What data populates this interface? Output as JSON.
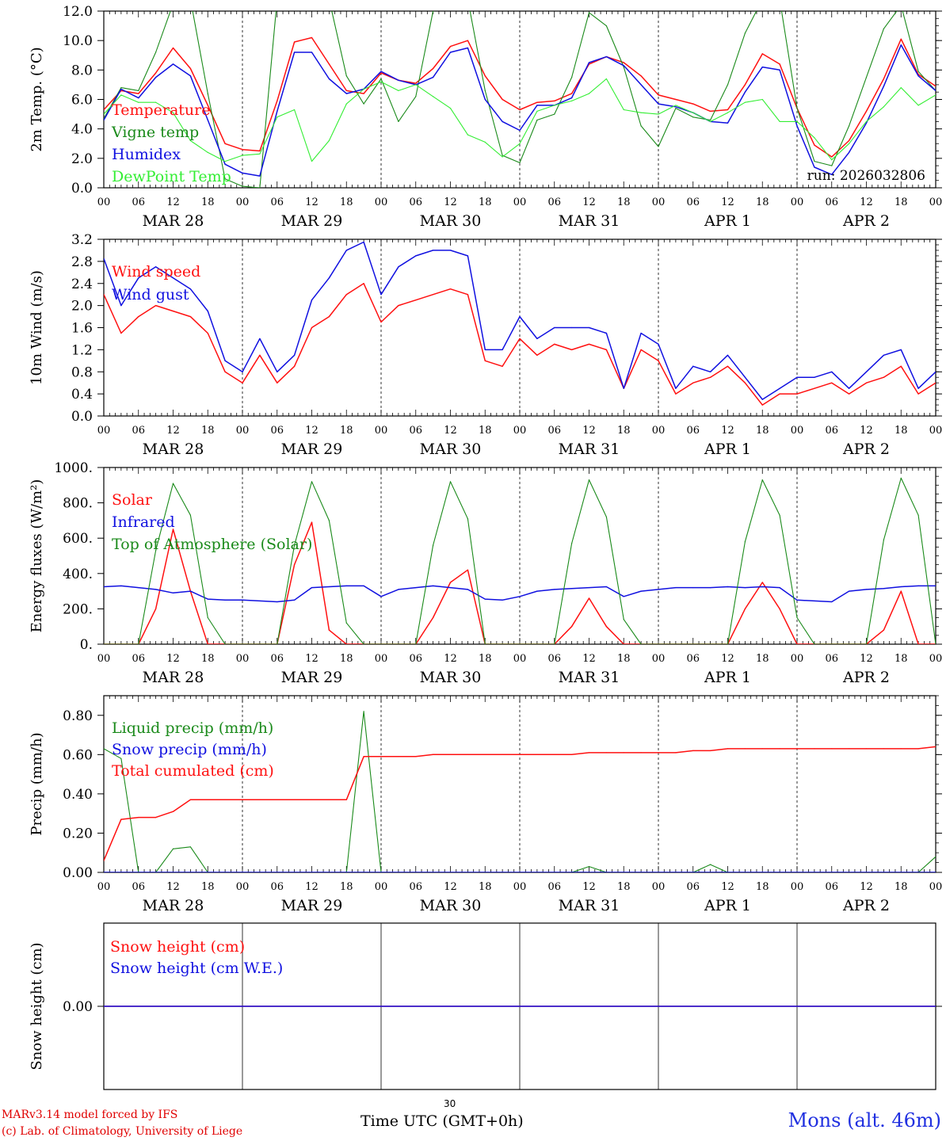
{
  "colors": {
    "red": "#ff1010",
    "darkgreen": "#1a8a1a",
    "blue": "#1010e0",
    "lightgreen": "#33ee33",
    "axis": "#000000"
  },
  "footer": {
    "model_line": "MARv3.14 model forced by IFS",
    "credit_line": "(c) Lab. of Climatology, University of Liege",
    "x_axis_label": "Time UTC (GMT+0h)",
    "page_number": "30",
    "station": "Mons (alt. 46m)"
  },
  "chart_data": [
    {
      "type": "line",
      "id": "temp",
      "ylabel": "2m Temp. (°C)",
      "ylim": [
        0,
        12
      ],
      "yticks": [
        "0.0",
        "2.0",
        "4.0",
        "6.0",
        "8.0",
        "10.0",
        "12.0"
      ],
      "day_labels": [
        "MAR 28",
        "MAR 29",
        "MAR 30",
        "MAR 31",
        "APR  1",
        "APR  2"
      ],
      "hour_labels": [
        "00",
        "06",
        "12",
        "18"
      ],
      "annotation": "run: 2026032806",
      "x_hours": [
        0,
        3,
        6,
        9,
        12,
        15,
        18,
        21,
        24,
        27,
        30,
        33,
        36,
        39,
        42,
        45,
        48,
        51,
        54,
        57,
        60,
        63,
        66,
        69,
        72,
        75,
        78,
        81,
        84,
        87,
        90,
        93,
        96,
        99,
        102,
        105,
        108,
        111,
        114,
        117,
        120,
        123,
        126,
        129,
        132,
        135,
        138,
        141,
        144
      ],
      "series": [
        {
          "name": "Temperature",
          "color": "red",
          "values": [
            5.3,
            6.6,
            6.4,
            7.8,
            9.5,
            8.1,
            5.6,
            3.0,
            2.6,
            2.5,
            5.9,
            9.9,
            10.2,
            8.4,
            6.6,
            6.4,
            7.8,
            7.3,
            7.1,
            8.1,
            9.6,
            10.0,
            7.6,
            6.0,
            5.3,
            5.8,
            5.9,
            6.4,
            8.4,
            8.9,
            8.5,
            7.6,
            6.3,
            6.0,
            5.7,
            5.2,
            5.3,
            7.0,
            9.1,
            8.4,
            5.4,
            2.9,
            2.1,
            3.2,
            5.2,
            7.4,
            10.1,
            7.7,
            6.9
          ]
        },
        {
          "name": "Vigne temp",
          "color": "darkgreen",
          "values": [
            4.7,
            6.8,
            6.6,
            9.2,
            12.5,
            12.8,
            6.4,
            0.6,
            0.1,
            0.0,
            12.8,
            12.8,
            12.8,
            12.8,
            7.6,
            5.7,
            7.4,
            4.5,
            6.2,
            12.0,
            12.8,
            12.8,
            6.6,
            2.2,
            1.7,
            4.6,
            5.0,
            7.5,
            11.9,
            11.0,
            8.2,
            4.2,
            2.8,
            5.4,
            4.8,
            4.6,
            7.0,
            10.5,
            12.8,
            12.8,
            5.4,
            1.8,
            1.5,
            4.2,
            7.5,
            10.8,
            12.4,
            7.9,
            6.6
          ]
        },
        {
          "name": "Humidex",
          "color": "blue",
          "values": [
            4.6,
            6.7,
            6.1,
            7.5,
            8.4,
            7.6,
            4.6,
            1.6,
            1.0,
            0.8,
            5.2,
            9.2,
            9.2,
            7.4,
            6.4,
            6.7,
            7.9,
            7.3,
            7.0,
            7.5,
            9.2,
            9.5,
            6.0,
            4.5,
            3.9,
            5.6,
            5.6,
            6.1,
            8.5,
            8.9,
            8.3,
            7.0,
            5.7,
            5.5,
            5.1,
            4.5,
            4.4,
            6.5,
            8.2,
            8.0,
            4.2,
            1.4,
            0.9,
            2.4,
            4.4,
            6.9,
            9.7,
            7.6,
            6.6
          ]
        },
        {
          "name": "DewPoint Temp",
          "color": "lightgreen",
          "values": [
            5.0,
            6.3,
            5.8,
            5.8,
            5.1,
            3.2,
            2.4,
            1.8,
            2.2,
            2.3,
            4.8,
            5.3,
            1.8,
            3.2,
            5.7,
            6.7,
            7.2,
            6.6,
            7.0,
            6.2,
            5.4,
            3.6,
            3.1,
            2.1,
            3.0,
            5.2,
            5.6,
            5.9,
            6.4,
            7.4,
            5.3,
            5.1,
            5.0,
            5.6,
            5.1,
            4.5,
            5.1,
            5.8,
            6.0,
            4.5,
            4.5,
            3.4,
            1.9,
            3.0,
            4.5,
            5.5,
            6.8,
            5.6,
            6.3
          ]
        }
      ]
    },
    {
      "type": "line",
      "id": "wind",
      "ylabel": "10m Wind (m/s)",
      "ylim": [
        0,
        3.2
      ],
      "yticks": [
        "0.0",
        "0.4",
        "0.8",
        "1.2",
        "1.6",
        "2.0",
        "2.4",
        "2.8",
        "3.2"
      ],
      "day_labels": [
        "MAR 28",
        "MAR 29",
        "MAR 30",
        "MAR 31",
        "APR  1",
        "APR  2"
      ],
      "hour_labels": [
        "00",
        "06",
        "12",
        "18"
      ],
      "x_hours": [
        0,
        3,
        6,
        9,
        12,
        15,
        18,
        21,
        24,
        27,
        30,
        33,
        36,
        39,
        42,
        45,
        48,
        51,
        54,
        57,
        60,
        63,
        66,
        69,
        72,
        75,
        78,
        81,
        84,
        87,
        90,
        93,
        96,
        99,
        102,
        105,
        108,
        111,
        114,
        117,
        120,
        123,
        126,
        129,
        132,
        135,
        138,
        141,
        144
      ],
      "series": [
        {
          "name": "Wind speed",
          "color": "red",
          "values": [
            2.2,
            1.5,
            1.8,
            2.0,
            1.9,
            1.8,
            1.5,
            0.8,
            0.6,
            1.1,
            0.6,
            0.9,
            1.6,
            1.8,
            2.2,
            2.4,
            1.7,
            2.0,
            2.1,
            2.2,
            2.3,
            2.2,
            1.0,
            0.9,
            1.4,
            1.1,
            1.3,
            1.2,
            1.3,
            1.2,
            0.5,
            1.2,
            1.0,
            0.4,
            0.6,
            0.7,
            0.9,
            0.6,
            0.2,
            0.4,
            0.4,
            0.5,
            0.6,
            0.4,
            0.6,
            0.7,
            0.9,
            0.4,
            0.6
          ]
        },
        {
          "name": "Wind gust",
          "color": "blue",
          "values": [
            2.85,
            2.0,
            2.5,
            2.7,
            2.5,
            2.3,
            1.9,
            1.0,
            0.8,
            1.4,
            0.8,
            1.1,
            2.1,
            2.5,
            3.0,
            3.15,
            2.2,
            2.7,
            2.9,
            3.0,
            3.0,
            2.9,
            1.2,
            1.2,
            1.8,
            1.4,
            1.6,
            1.6,
            1.6,
            1.5,
            0.5,
            1.5,
            1.3,
            0.5,
            0.9,
            0.8,
            1.1,
            0.7,
            0.3,
            0.5,
            0.7,
            0.7,
            0.8,
            0.5,
            0.8,
            1.1,
            1.2,
            0.5,
            0.8
          ]
        }
      ]
    },
    {
      "type": "line",
      "id": "energy",
      "ylabel": "Energy fluxes (W/m²)",
      "ylim": [
        0,
        1000
      ],
      "yticks": [
        "0.",
        "200.",
        "400.",
        "600.",
        "800.",
        "1000."
      ],
      "day_labels": [
        "MAR 28",
        "MAR 29",
        "MAR 30",
        "MAR 31",
        "APR  1",
        "APR  2"
      ],
      "hour_labels": [
        "00",
        "06",
        "12",
        "18"
      ],
      "x_hours": [
        0,
        3,
        6,
        9,
        12,
        15,
        18,
        21,
        24,
        27,
        30,
        33,
        36,
        39,
        42,
        45,
        48,
        51,
        54,
        57,
        60,
        63,
        66,
        69,
        72,
        75,
        78,
        81,
        84,
        87,
        90,
        93,
        96,
        99,
        102,
        105,
        108,
        111,
        114,
        117,
        120,
        123,
        126,
        129,
        132,
        135,
        138,
        141,
        144
      ],
      "series": [
        {
          "name": "Solar",
          "color": "red",
          "values": [
            0,
            0,
            0,
            200,
            650,
            300,
            0,
            0,
            0,
            0,
            0,
            450,
            690,
            80,
            0,
            0,
            0,
            0,
            0,
            150,
            350,
            420,
            0,
            0,
            0,
            0,
            0,
            100,
            260,
            100,
            0,
            0,
            0,
            0,
            0,
            0,
            0,
            200,
            350,
            200,
            0,
            0,
            0,
            0,
            0,
            80,
            300,
            0,
            0
          ]
        },
        {
          "name": "Infrared",
          "color": "blue",
          "values": [
            325,
            330,
            320,
            310,
            290,
            300,
            255,
            250,
            250,
            245,
            240,
            250,
            320,
            325,
            330,
            330,
            270,
            310,
            320,
            330,
            320,
            310,
            255,
            250,
            270,
            300,
            310,
            315,
            320,
            325,
            270,
            300,
            310,
            320,
            320,
            320,
            325,
            320,
            325,
            320,
            250,
            245,
            240,
            300,
            310,
            315,
            325,
            330,
            330
          ]
        },
        {
          "name": "Top of Atmosphere (Solar)",
          "color": "darkgreen",
          "values": [
            0,
            0,
            0,
            530,
            910,
            730,
            150,
            0,
            0,
            0,
            0,
            560,
            920,
            700,
            120,
            0,
            0,
            0,
            0,
            560,
            920,
            710,
            0,
            0,
            0,
            0,
            0,
            570,
            930,
            720,
            140,
            0,
            0,
            0,
            0,
            0,
            0,
            580,
            930,
            730,
            150,
            0,
            0,
            0,
            0,
            590,
            940,
            730,
            0
          ]
        }
      ]
    },
    {
      "type": "line",
      "id": "precip",
      "ylabel": "Precip (mm/h)",
      "ylim": [
        0,
        0.9
      ],
      "yticks": [
        "0.00",
        "0.20",
        "0.40",
        "0.60",
        "0.80"
      ],
      "day_labels": [
        "MAR 28",
        "MAR 29",
        "MAR 30",
        "MAR 31",
        "APR  1",
        "APR  2"
      ],
      "hour_labels": [
        "00",
        "06",
        "12",
        "18"
      ],
      "x_hours": [
        0,
        3,
        6,
        9,
        12,
        15,
        18,
        21,
        24,
        27,
        30,
        33,
        36,
        39,
        42,
        45,
        48,
        51,
        54,
        57,
        60,
        63,
        66,
        69,
        72,
        75,
        78,
        81,
        84,
        87,
        90,
        93,
        96,
        99,
        102,
        105,
        108,
        111,
        114,
        117,
        120,
        123,
        126,
        129,
        132,
        135,
        138,
        141,
        144
      ],
      "series": [
        {
          "name": "Liquid precip (mm/h)",
          "color": "darkgreen",
          "values": [
            0.63,
            0.58,
            0.0,
            0.0,
            0.12,
            0.13,
            0.0,
            0.0,
            0.0,
            0.0,
            0.0,
            0.0,
            0.0,
            0.0,
            0.0,
            0.82,
            0.0,
            0.0,
            0.0,
            0.0,
            0.0,
            0.0,
            0.0,
            0.0,
            0.0,
            0.0,
            0.0,
            0.0,
            0.03,
            0.0,
            0.0,
            0.0,
            0.0,
            0.0,
            0.0,
            0.04,
            0.0,
            0.0,
            0.0,
            0.0,
            0.0,
            0.0,
            0.0,
            0.0,
            0.0,
            0.0,
            0.0,
            0.0,
            0.08
          ]
        },
        {
          "name": "Snow precip (mm/h)",
          "color": "blue",
          "values": [
            0,
            0,
            0,
            0,
            0,
            0,
            0,
            0,
            0,
            0,
            0,
            0,
            0,
            0,
            0,
            0,
            0,
            0,
            0,
            0,
            0,
            0,
            0,
            0,
            0,
            0,
            0,
            0,
            0,
            0,
            0,
            0,
            0,
            0,
            0,
            0,
            0,
            0,
            0,
            0,
            0,
            0,
            0,
            0,
            0,
            0,
            0,
            0,
            0
          ]
        },
        {
          "name": "Total cumulated (cm)",
          "color": "red",
          "values": [
            0.06,
            0.27,
            0.28,
            0.28,
            0.31,
            0.37,
            0.37,
            0.37,
            0.37,
            0.37,
            0.37,
            0.37,
            0.37,
            0.37,
            0.37,
            0.59,
            0.59,
            0.59,
            0.59,
            0.6,
            0.6,
            0.6,
            0.6,
            0.6,
            0.6,
            0.6,
            0.6,
            0.6,
            0.61,
            0.61,
            0.61,
            0.61,
            0.61,
            0.61,
            0.62,
            0.62,
            0.63,
            0.63,
            0.63,
            0.63,
            0.63,
            0.63,
            0.63,
            0.63,
            0.63,
            0.63,
            0.63,
            0.63,
            0.64
          ]
        }
      ]
    },
    {
      "type": "line",
      "id": "snow",
      "ylabel": "Snow height (cm)",
      "ylim": [
        -0.4,
        0.4
      ],
      "yticks": [
        "0.00"
      ],
      "x_hours": [
        0,
        144
      ],
      "series": [
        {
          "name": "Snow height (cm)",
          "color": "red",
          "values": [
            0,
            0
          ]
        },
        {
          "name": "Snow height (cm W.E.)",
          "color": "blue",
          "values": [
            0,
            0
          ]
        }
      ]
    }
  ]
}
